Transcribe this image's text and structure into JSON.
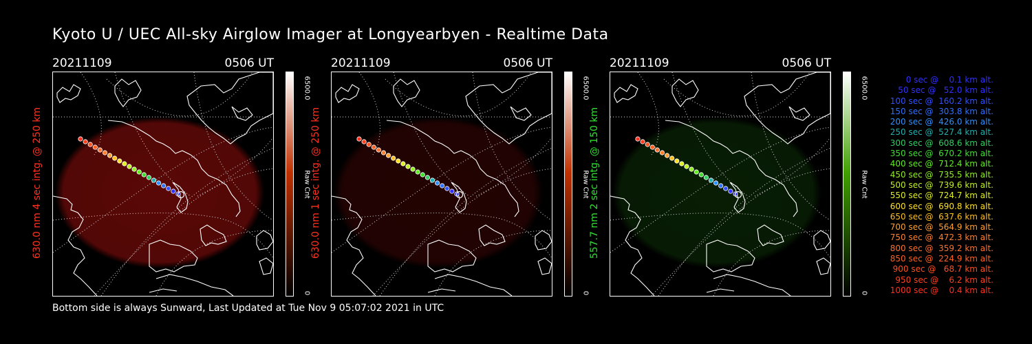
{
  "title": "Kyoto U / UEC All-sky Airglow Imager at Longyearbyen - Realtime Data",
  "footer": "Bottom side is always Sunward, Last Updated at Tue Nov  9 05:07:02 2021 in UTC",
  "panels": [
    {
      "date": "20211109",
      "time": "0506 UT",
      "label": "630.0 nm 4 sec intg. @ 250 km",
      "label_color": "#ff3020",
      "cbar_max": "6500.0",
      "cbar_unit": "Raw Cnt",
      "cbar_min": "0",
      "cbar_color": "#c03000",
      "glow": "#6a0a08",
      "glow_opacity": 0.85
    },
    {
      "date": "20211109",
      "time": "0506 UT",
      "label": "630.0 nm 1 sec intg. @ 250 km",
      "label_color": "#ff3020",
      "cbar_max": "6500.0",
      "cbar_unit": "Raw Cnt",
      "cbar_min": "0",
      "cbar_color": "#c03000",
      "glow": "#3a0504",
      "glow_opacity": 0.6
    },
    {
      "date": "20211109",
      "time": "0506 UT",
      "label": "557.7 nm 2 sec intg. @ 150 km",
      "label_color": "#30e030",
      "cbar_max": "6500.0",
      "cbar_unit": "Raw Cnt",
      "cbar_min": "0",
      "cbar_color": "#40a000",
      "glow": "#0b2a06",
      "glow_opacity": 0.7
    }
  ],
  "legend": [
    {
      "text": "0 sec @    0.1 km alt.",
      "color": "#3030ff"
    },
    {
      "text": "50 sec @   52.0 km alt.",
      "color": "#3030ff"
    },
    {
      "text": "100 sec @  160.2 km alt.",
      "color": "#3050ff"
    },
    {
      "text": "150 sec @  303.8 km alt.",
      "color": "#3070ff"
    },
    {
      "text": "200 sec @  426.0 km alt.",
      "color": "#3090ff"
    },
    {
      "text": "250 sec @  527.4 km alt.",
      "color": "#20b0b0"
    },
    {
      "text": "300 sec @  608.6 km alt.",
      "color": "#30d060"
    },
    {
      "text": "350 sec @  670.2 km alt.",
      "color": "#40e030"
    },
    {
      "text": "400 sec @  712.4 km alt.",
      "color": "#60f020"
    },
    {
      "text": "450 sec @  735.5 km alt.",
      "color": "#90f020"
    },
    {
      "text": "500 sec @  739.6 km alt.",
      "color": "#c0f020"
    },
    {
      "text": "550 sec @  724.7 km alt.",
      "color": "#e0f020"
    },
    {
      "text": "600 sec @  690.8 km alt.",
      "color": "#ffe020"
    },
    {
      "text": "650 sec @  637.6 km alt.",
      "color": "#ffc020"
    },
    {
      "text": "700 sec @  564.9 km alt.",
      "color": "#ffa030"
    },
    {
      "text": "750 sec @  472.3 km alt.",
      "color": "#ff8030"
    },
    {
      "text": "800 sec @  359.2 km alt.",
      "color": "#ff7030"
    },
    {
      "text": "850 sec @  224.9 km alt.",
      "color": "#ff6020"
    },
    {
      "text": "900 sec @   68.7 km alt.",
      "color": "#ff5020"
    },
    {
      "text": "950 sec @    6.2 km alt.",
      "color": "#ff4020"
    },
    {
      "text": "1000 sec @    0.4 km alt.",
      "color": "#ff3020"
    }
  ]
}
